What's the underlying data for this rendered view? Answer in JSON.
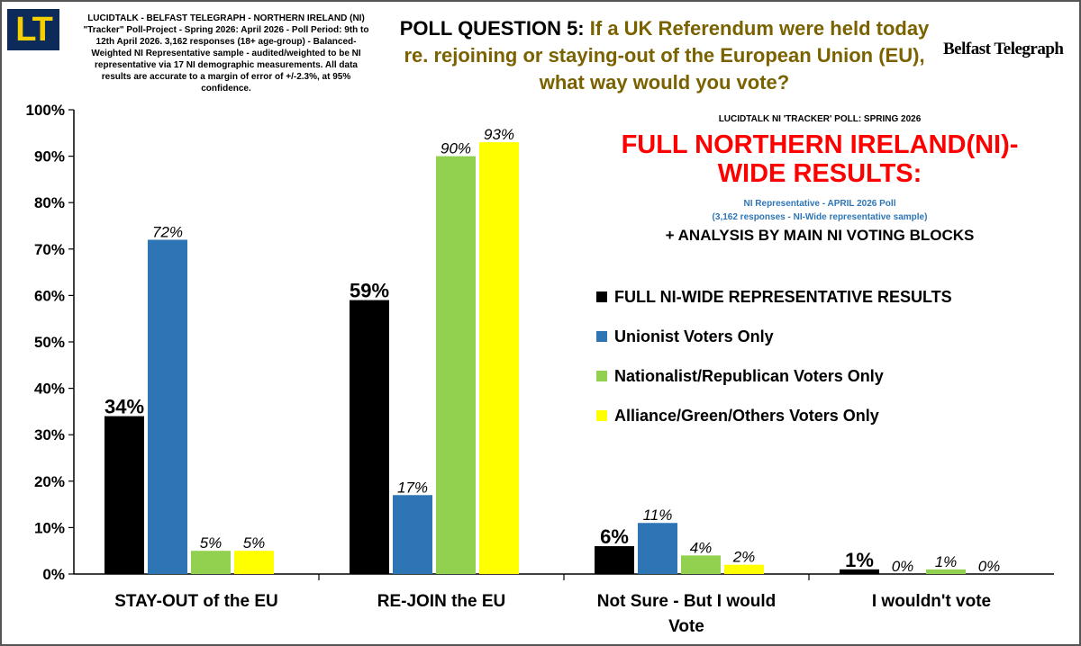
{
  "header": {
    "logo_text": "LT",
    "methodology": "LUCIDTALK - BELFAST TELEGRAPH - NORTHERN IRELAND (NI) \"Tracker\" Poll-Project - Spring 2026: April 2026 - Poll Period: 9th to 12th April 2026. 3,162 responses (18+ age-group) - Balanced-Weighted NI Representative sample - audited/weighted to be NI representative via 17 NI demographic measurements. All data results are accurate to a margin of error of +/-2.3%, at 95% confidence.",
    "question_prefix": "POLL QUESTION 5:",
    "question_text": "If a UK Referendum were held today re. rejoining or staying-out of the European Union (EU), what way would you vote?",
    "partner_logo": "Belfast Telegraph"
  },
  "info": {
    "poll_name": "LUCIDTALK NI 'TRACKER' POLL: SPRING 2026",
    "headline": "FULL NORTHERN IRELAND(NI)-WIDE RESULTS:",
    "sub_line1": "NI Representative - APRIL 2026 Poll",
    "sub_line2": "(3,162 responses - NI-Wide representative sample)",
    "analysis": "+ ANALYSIS BY MAIN NI VOTING BLOCKS"
  },
  "colors": {
    "full": "#000000",
    "unionist": "#2e75b6",
    "nationalist": "#92d050",
    "alliance": "#ffff00",
    "question_text": "#7a6200",
    "headline": "#ff0000",
    "logo_bg": "#0c2a5a",
    "logo_fg": "#f5d000"
  },
  "chart_data": {
    "type": "bar",
    "categories": [
      "STAY-OUT of the EU",
      "RE-JOIN the EU",
      "Not Sure - But I would Vote",
      "I wouldn't vote"
    ],
    "series": [
      {
        "name": "FULL NI-WIDE REPRESENTATIVE RESULTS",
        "values": [
          34,
          59,
          6,
          1
        ],
        "labels": [
          "34%",
          "59%",
          "6%",
          "1%"
        ]
      },
      {
        "name": "Unionist Voters Only",
        "values": [
          72,
          17,
          11,
          0
        ],
        "labels": [
          "72%",
          "17%",
          "11%",
          "0%"
        ]
      },
      {
        "name": "Nationalist/Republican Voters Only",
        "values": [
          5,
          90,
          4,
          1
        ],
        "labels": [
          "5%",
          "90%",
          "4%",
          "1%"
        ]
      },
      {
        "name": "Alliance/Green/Others Voters Only",
        "values": [
          5,
          93,
          2,
          0
        ],
        "labels": [
          "5%",
          "93%",
          "2%",
          "0%"
        ]
      }
    ],
    "yticks": [
      "0%",
      "10%",
      "20%",
      "30%",
      "40%",
      "50%",
      "60%",
      "70%",
      "80%",
      "90%",
      "100%"
    ],
    "ylim": [
      0,
      100
    ],
    "grid": false,
    "legend_position": "right"
  }
}
